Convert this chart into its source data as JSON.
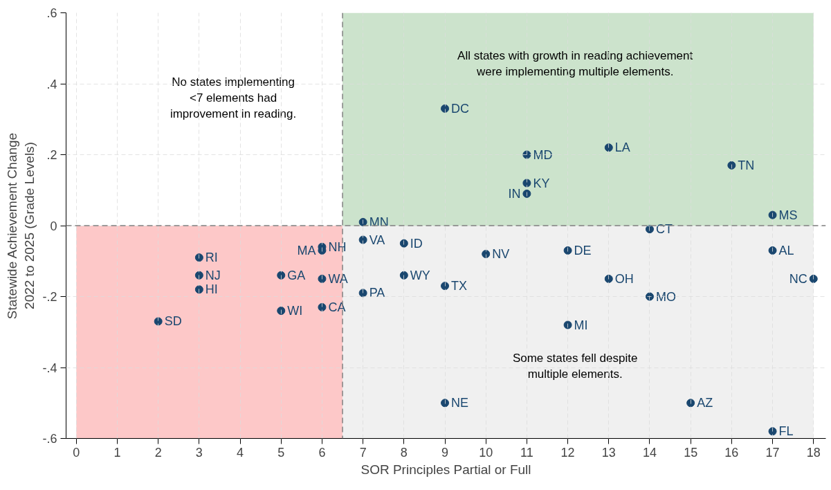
{
  "chart_data": {
    "type": "scatter",
    "xlabel": "SOR Principles Partial or Full",
    "ylabel": "Statewide Achievement Change\n2022 to 2025 (Grade Levels)",
    "series": [
      {
        "type": "area",
        "color": "#cce3cc",
        "x": [
          6.5,
          18
        ],
        "values": [
          0.6,
          0.6
        ]
      },
      {
        "type": "area",
        "color": "#fdc8c8",
        "x": [
          0,
          6.5
        ],
        "values": [
          -0.6,
          -0.6
        ]
      },
      {
        "type": "area",
        "color": "#f0f0f0",
        "x": [
          6.5,
          18
        ],
        "values": [
          -0.6,
          -0.6
        ]
      },
      {
        "marker": "circle",
        "color": "#1a476f",
        "x": [
          9,
          13,
          11,
          16,
          11,
          11,
          17,
          7,
          14,
          7,
          8,
          10,
          12,
          17,
          8,
          9,
          13,
          18,
          7,
          14,
          12,
          9,
          15,
          17,
          6,
          6,
          3,
          3,
          3,
          5,
          6,
          5,
          6,
          2
        ],
        "values": [
          0.33,
          0.22,
          0.2,
          0.17,
          0.12,
          0.09,
          0.03,
          0.01,
          -0.01,
          -0.04,
          -0.05,
          -0.08,
          -0.07,
          -0.07,
          -0.14,
          -0.17,
          -0.15,
          -0.15,
          -0.19,
          -0.2,
          -0.28,
          -0.5,
          -0.5,
          -0.58,
          -0.06,
          -0.07,
          -0.09,
          -0.14,
          -0.18,
          -0.14,
          -0.15,
          -0.24,
          -0.23,
          -0.27
        ],
        "value_labels": [
          "DC",
          "LA",
          "MD",
          "TN",
          "KY",
          "IN",
          "MS",
          "MN",
          "CT",
          "VA",
          "ID",
          "NV",
          "DE",
          "AL",
          "WY",
          "TX",
          "OH",
          "NC",
          "PA",
          "MO",
          "MI",
          "NE",
          "AZ",
          "FL",
          "NH",
          "MA",
          "RI",
          "NJ",
          "HI",
          "GA",
          "WA",
          "WI",
          "CA",
          "SD"
        ]
      }
    ],
    "xlim": [
      -0.25,
      18.3
    ],
    "ylim": [
      -0.6,
      0.6
    ],
    "xticks": [
      0,
      1,
      2,
      3,
      4,
      5,
      6,
      7,
      8,
      9,
      10,
      11,
      12,
      13,
      14,
      15,
      16,
      17,
      18
    ],
    "yticks": [
      {
        "value": -0.6,
        "label": "-.6"
      },
      {
        "value": -0.4,
        "label": "-.4"
      },
      {
        "value": -0.2,
        "label": "-.2"
      },
      0,
      {
        "value": 0.2,
        "label": ".2"
      },
      {
        "value": 0.4,
        "label": ".4"
      },
      {
        "value": 0.6,
        "label": ".6"
      }
    ],
    "grid": true,
    "ref_lines": [
      {
        "axis": "x",
        "value": 6.5,
        "color": "#808080",
        "line_style": "dashed"
      },
      {
        "axis": "y",
        "value": 0,
        "color": "#808080",
        "line_style": "dashed"
      }
    ],
    "annotations": [
      "No states implementing\n<7 elements had\nimprovement in reading.",
      "All states with growth in reading achievement\nwere implementing multiple elements.",
      "Some states fell despite\nmultiple elements."
    ]
  }
}
